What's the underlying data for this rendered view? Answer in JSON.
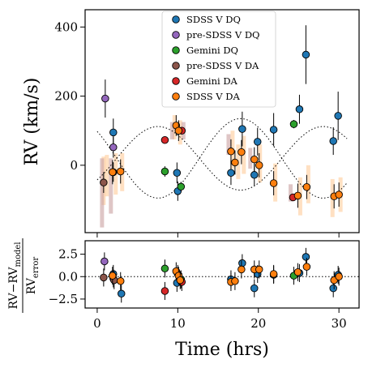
{
  "chart_data": [
    {
      "panel": "top",
      "type": "scatter",
      "ylabel": "RV (km/s)",
      "xlim": [
        -1.5,
        32.5
      ],
      "ylim": [
        -195,
        450
      ],
      "yticks": [
        0,
        200,
        400
      ],
      "legend_position": "upper-center",
      "model_curves": [
        {
          "style": "dotted",
          "mean": 20,
          "amplitude": 115,
          "period_hours": 20.5,
          "phase_hours": 17.8
        },
        {
          "style": "dotted",
          "mean": 20,
          "amplitude": 92,
          "period_hours": 20.5,
          "phase_hours": 7.55
        }
      ],
      "series": [
        {
          "name": "SDSS V DQ",
          "color": "#1f77b4",
          "points": [
            {
              "x": 2.0,
              "y": 95,
              "err": 40
            },
            {
              "x": 9.9,
              "y": -22,
              "err": 30
            },
            {
              "x": 10.0,
              "y": -75,
              "err": 28
            },
            {
              "x": 16.6,
              "y": -22,
              "err": 35
            },
            {
              "x": 18.0,
              "y": 105,
              "err": 50
            },
            {
              "x": 19.5,
              "y": -28,
              "err": 32
            },
            {
              "x": 19.9,
              "y": 68,
              "err": 40
            },
            {
              "x": 21.9,
              "y": 103,
              "err": 48
            },
            {
              "x": 25.1,
              "y": 162,
              "err": 42
            },
            {
              "x": 25.9,
              "y": 320,
              "err": 85
            },
            {
              "x": 29.3,
              "y": 70,
              "err": 40
            },
            {
              "x": 29.9,
              "y": 143,
              "err": 70
            }
          ]
        },
        {
          "name": "pre-SDSS V DQ",
          "color": "#9467bd",
          "points": [
            {
              "x": 1.0,
              "y": 193,
              "err": 55
            },
            {
              "x": 2.0,
              "y": 52,
              "err": 30
            }
          ]
        },
        {
          "name": "Gemini DQ",
          "color": "#2ca02c",
          "points": [
            {
              "x": 8.4,
              "y": -18,
              "err": 15
            },
            {
              "x": 10.4,
              "y": -62,
              "err": 14
            },
            {
              "x": 24.4,
              "y": 119,
              "err": 12
            }
          ]
        },
        {
          "name": "pre-SDSS V DA",
          "color": "#8c564b",
          "points": [
            {
              "x": 0.8,
              "y": -50,
              "err": 30
            },
            {
              "x": 2.0,
              "y": -20,
              "err": 28
            }
          ]
        },
        {
          "name": "Gemini DA",
          "color": "#d62728",
          "points": [
            {
              "x": 8.4,
              "y": 73,
              "err": 10
            },
            {
              "x": 10.5,
              "y": 100,
              "err": 10
            },
            {
              "x": 24.3,
              "y": -93,
              "err": 10
            }
          ]
        },
        {
          "name": "SDSS V DA",
          "color": "#ff7f0e",
          "points": [
            {
              "x": 1.9,
              "y": -20,
              "err": 35
            },
            {
              "x": 2.9,
              "y": -18,
              "err": 35
            },
            {
              "x": 9.8,
              "y": 115,
              "err": 30
            },
            {
              "x": 10.1,
              "y": 100,
              "err": 30
            },
            {
              "x": 16.6,
              "y": 40,
              "err": 35
            },
            {
              "x": 17.1,
              "y": 8,
              "err": 35
            },
            {
              "x": 17.9,
              "y": 38,
              "err": 35
            },
            {
              "x": 19.5,
              "y": 17,
              "err": 35
            },
            {
              "x": 20.1,
              "y": 0,
              "err": 35
            },
            {
              "x": 21.9,
              "y": -52,
              "err": 35
            },
            {
              "x": 24.9,
              "y": -88,
              "err": 35
            },
            {
              "x": 26.0,
              "y": -63,
              "err": 35
            },
            {
              "x": 29.4,
              "y": -90,
              "err": 35
            },
            {
              "x": 30.0,
              "y": -85,
              "err": 35
            }
          ]
        }
      ],
      "shaded_bands": [
        {
          "color": "#ffcc99",
          "items": [
            {
              "x": 0.8,
              "y": -45,
              "err": 70
            },
            {
              "x": 1.2,
              "y": -30,
              "err": 60
            },
            {
              "x": 2.3,
              "y": -25,
              "err": 60
            },
            {
              "x": 3.1,
              "y": -20,
              "err": 55
            },
            {
              "x": 9.6,
              "y": 110,
              "err": 35
            },
            {
              "x": 10.3,
              "y": 95,
              "err": 35
            },
            {
              "x": 16.8,
              "y": 45,
              "err": 55
            },
            {
              "x": 17.5,
              "y": 10,
              "err": 50
            },
            {
              "x": 18.2,
              "y": 30,
              "err": 55
            },
            {
              "x": 20.2,
              "y": 5,
              "err": 55
            },
            {
              "x": 22.1,
              "y": -50,
              "err": 55
            },
            {
              "x": 25.2,
              "y": -90,
              "err": 55
            },
            {
              "x": 26.2,
              "y": -55,
              "err": 55
            },
            {
              "x": 29.2,
              "y": -95,
              "err": 55
            },
            {
              "x": 30.2,
              "y": -85,
              "err": 50
            }
          ]
        },
        {
          "color": "#c9a0a0",
          "items": [
            {
              "x": 0.6,
              "y": -80,
              "err": 100
            },
            {
              "x": 1.7,
              "y": -60,
              "err": 80
            },
            {
              "x": 9.3,
              "y": 100,
              "err": 25
            },
            {
              "x": 10.7,
              "y": 100,
              "err": 25
            },
            {
              "x": 16.3,
              "y": 60,
              "err": 30
            },
            {
              "x": 19.0,
              "y": 20,
              "err": 30
            },
            {
              "x": 24.0,
              "y": -80,
              "err": 25
            }
          ]
        }
      ]
    },
    {
      "panel": "bottom",
      "type": "scatter",
      "xlabel": "Time (hrs)",
      "ylabel_line1": "RV−RV",
      "ylabel_sub1": "model",
      "ylabel_line2": "RV",
      "ylabel_sub2": "error",
      "xlim": [
        -1.5,
        32.5
      ],
      "ylim": [
        -3.5,
        4.0
      ],
      "xticks": [
        0,
        10,
        20,
        30
      ],
      "yticks": [
        2.5,
        0.0,
        -2.5
      ],
      "ytick_labels": [
        "2.5",
        "0.0",
        "−2.5"
      ],
      "reference_line": {
        "y": 0,
        "style": "dotted"
      },
      "series": [
        {
          "name": "SDSS V DQ",
          "color": "#1f77b4",
          "points": [
            {
              "x": 2.0,
              "y": 0.3,
              "err": 1
            },
            {
              "x": 3.0,
              "y": -1.9,
              "err": 1
            },
            {
              "x": 9.9,
              "y": -0.7,
              "err": 1
            },
            {
              "x": 10.0,
              "y": 0.3,
              "err": 1
            },
            {
              "x": 16.6,
              "y": -0.3,
              "err": 1
            },
            {
              "x": 18.0,
              "y": 1.5,
              "err": 1
            },
            {
              "x": 19.5,
              "y": -1.3,
              "err": 1
            },
            {
              "x": 19.9,
              "y": 0.3,
              "err": 1
            },
            {
              "x": 21.9,
              "y": 0.2,
              "err": 1
            },
            {
              "x": 25.1,
              "y": 0.4,
              "err": 1
            },
            {
              "x": 25.9,
              "y": 2.2,
              "err": 1
            },
            {
              "x": 29.3,
              "y": -1.3,
              "err": 1
            },
            {
              "x": 29.9,
              "y": 0.2,
              "err": 1
            }
          ]
        },
        {
          "name": "pre-SDSS V DQ",
          "color": "#9467bd",
          "points": [
            {
              "x": 0.9,
              "y": 1.7,
              "err": 1
            },
            {
              "x": 2.0,
              "y": -0.2,
              "err": 1
            }
          ]
        },
        {
          "name": "Gemini DQ",
          "color": "#2ca02c",
          "points": [
            {
              "x": 8.4,
              "y": 0.9,
              "err": 1
            },
            {
              "x": 10.4,
              "y": -0.3,
              "err": 1
            },
            {
              "x": 24.4,
              "y": 0.1,
              "err": 1
            }
          ]
        },
        {
          "name": "pre-SDSS V DA",
          "color": "#8c564b",
          "points": [
            {
              "x": 0.8,
              "y": -0.1,
              "err": 1
            },
            {
              "x": 2.1,
              "y": -0.4,
              "err": 1
            }
          ]
        },
        {
          "name": "Gemini DA",
          "color": "#d62728",
          "points": [
            {
              "x": 8.4,
              "y": -1.6,
              "err": 1
            },
            {
              "x": 10.5,
              "y": -0.6,
              "err": 1
            }
          ]
        },
        {
          "name": "SDSS V DA",
          "color": "#ff7f0e",
          "points": [
            {
              "x": 1.9,
              "y": 0.1,
              "err": 1
            },
            {
              "x": 2.9,
              "y": -0.5,
              "err": 1
            },
            {
              "x": 9.8,
              "y": 0.6,
              "err": 1
            },
            {
              "x": 10.1,
              "y": 0.1,
              "err": 1
            },
            {
              "x": 10.3,
              "y": -0.4,
              "err": 1
            },
            {
              "x": 16.6,
              "y": -0.6,
              "err": 1
            },
            {
              "x": 17.1,
              "y": -0.5,
              "err": 1
            },
            {
              "x": 17.9,
              "y": 0.8,
              "err": 1
            },
            {
              "x": 19.5,
              "y": 0.8,
              "err": 1
            },
            {
              "x": 20.1,
              "y": 0.8,
              "err": 1
            },
            {
              "x": 21.9,
              "y": 0.3,
              "err": 1
            },
            {
              "x": 24.9,
              "y": 0.5,
              "err": 1
            },
            {
              "x": 26.0,
              "y": 1.1,
              "err": 1
            },
            {
              "x": 29.4,
              "y": -0.4,
              "err": 1
            },
            {
              "x": 30.0,
              "y": 0.0,
              "err": 1
            }
          ]
        }
      ]
    }
  ]
}
